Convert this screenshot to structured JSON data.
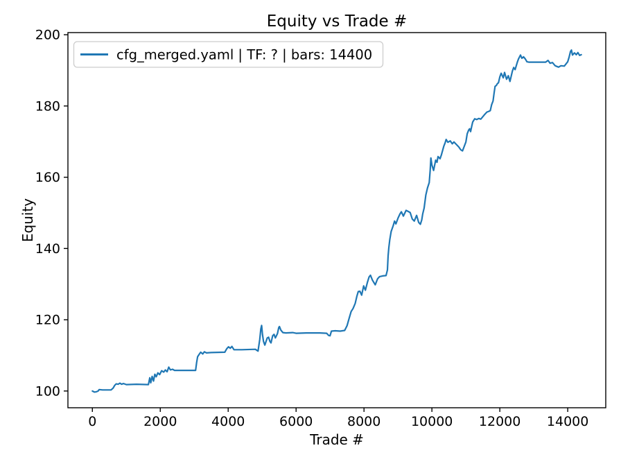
{
  "figure": {
    "background": "#ffffff"
  },
  "colors": {
    "line": "#1f77b4",
    "axis": "#000000",
    "legend_border": "#cccccc",
    "legend_background": "#ffffff",
    "text": "#000000"
  },
  "chart_data": {
    "type": "line",
    "title": "Equity vs Trade #",
    "xlabel": "Trade #",
    "ylabel": "Equity",
    "grid": false,
    "legend_position": "upper left",
    "xlim": [
      -720,
      15120
    ],
    "ylim": [
      95.3,
      200.6
    ],
    "xticks": [
      0,
      2000,
      4000,
      6000,
      8000,
      10000,
      12000,
      14000
    ],
    "yticks": [
      100,
      120,
      140,
      160,
      180,
      200
    ],
    "legend": {
      "entries": [
        {
          "label": "cfg_merged.yaml | TF: ? | bars: 14400",
          "color": "#1f77b4"
        }
      ]
    },
    "series": [
      {
        "name": "cfg_merged.yaml | TF: ? | bars: 14400",
        "color": "#1f77b4",
        "x": [
          0,
          60,
          120,
          170,
          200,
          300,
          550,
          610,
          660,
          700,
          760,
          810,
          860,
          920,
          1000,
          1300,
          1650,
          1690,
          1720,
          1760,
          1800,
          1840,
          1880,
          1930,
          1980,
          2040,
          2100,
          2150,
          2200,
          2250,
          2300,
          2360,
          2420,
          2700,
          3040,
          3070,
          3100,
          3140,
          3190,
          3250,
          3300,
          3360,
          3500,
          3900,
          3960,
          4010,
          4060,
          4110,
          4170,
          4400,
          4800,
          4880,
          4930,
          4960,
          4985,
          5010,
          5040,
          5080,
          5150,
          5190,
          5230,
          5260,
          5310,
          5350,
          5390,
          5450,
          5490,
          5510,
          5550,
          5610,
          5700,
          5900,
          6000,
          6300,
          6700,
          6900,
          6960,
          7000,
          7040,
          7150,
          7300,
          7430,
          7500,
          7560,
          7620,
          7680,
          7740,
          7790,
          7830,
          7880,
          7930,
          7990,
          8040,
          8100,
          8150,
          8190,
          8250,
          8330,
          8400,
          8460,
          8550,
          8650,
          8690,
          8710,
          8730,
          8760,
          8800,
          8860,
          8900,
          8940,
          9000,
          9060,
          9100,
          9160,
          9240,
          9300,
          9360,
          9420,
          9480,
          9550,
          9610,
          9660,
          9700,
          9730,
          9770,
          9820,
          9870,
          9920,
          9950,
          9970,
          10000,
          10050,
          10110,
          10150,
          10180,
          10240,
          10280,
          10350,
          10390,
          10420,
          10470,
          10540,
          10600,
          10650,
          10720,
          10790,
          10850,
          10900,
          10950,
          11000,
          11040,
          11080,
          11110,
          11140,
          11170,
          11200,
          11260,
          11320,
          11380,
          11440,
          11510,
          11560,
          11620,
          11680,
          11720,
          11760,
          11800,
          11830,
          11860,
          11900,
          11930,
          11960,
          12000,
          12040,
          12100,
          12140,
          12200,
          12250,
          12300,
          12370,
          12410,
          12450,
          12520,
          12550,
          12610,
          12650,
          12700,
          12750,
          12800,
          12850,
          13100,
          13350,
          13420,
          13480,
          13550,
          13630,
          13730,
          13800,
          13900,
          14000,
          14040,
          14080,
          14110,
          14140,
          14200,
          14250,
          14300,
          14350,
          14400
        ],
        "y": [
          100,
          99.7,
          99.8,
          100,
          100.4,
          100.3,
          100.3,
          100.8,
          101.6,
          102,
          101.9,
          102.2,
          101.9,
          102.1,
          101.8,
          101.9,
          101.8,
          103.7,
          102.3,
          104.1,
          102.8,
          104.7,
          104,
          105.1,
          104.6,
          105.7,
          105.3,
          105.9,
          105.4,
          106.7,
          105.9,
          106.1,
          105.8,
          105.8,
          105.8,
          108,
          109.6,
          110.2,
          110.9,
          110.4,
          111,
          110.7,
          110.8,
          110.9,
          111.9,
          112.4,
          112,
          112.5,
          111.6,
          111.6,
          111.7,
          111.2,
          114.5,
          117.4,
          118.4,
          115.9,
          113.9,
          112.9,
          114.9,
          115.1,
          113.9,
          113.5,
          115.5,
          115.9,
          114.9,
          116.1,
          117.8,
          118.1,
          117.1,
          116.4,
          116.3,
          116.4,
          116.2,
          116.3,
          116.3,
          116.2,
          115.6,
          115.5,
          116.8,
          116.9,
          116.8,
          117,
          118.3,
          120.3,
          122.3,
          123.2,
          124.6,
          126.6,
          127.9,
          128,
          126.9,
          129.5,
          128.3,
          130.5,
          132,
          132.5,
          131.1,
          129.8,
          131.5,
          132.1,
          132.3,
          132.4,
          134,
          138,
          140.2,
          142.5,
          144.8,
          146.4,
          147.7,
          146.9,
          148.5,
          149.7,
          150.3,
          149.1,
          150.7,
          150.4,
          150.1,
          148.3,
          147.7,
          149.3,
          147.3,
          146.8,
          148,
          149.7,
          151.3,
          155,
          157,
          158.5,
          162,
          165.4,
          163.4,
          161.9,
          164.8,
          164.2,
          165.8,
          165.2,
          166.3,
          168.7,
          169.7,
          170.6,
          169.8,
          170.2,
          169.4,
          169.9,
          169.2,
          168.5,
          167.7,
          167.4,
          168.6,
          169.9,
          172.2,
          173.2,
          173.6,
          172.8,
          174.2,
          175.5,
          176.4,
          176.2,
          176.5,
          176.3,
          177.1,
          177.7,
          178.3,
          178.5,
          178.7,
          180.4,
          181.4,
          183.5,
          185.5,
          185.8,
          186.3,
          186.5,
          188.2,
          189.2,
          187.9,
          189.4,
          187.5,
          188.5,
          186.9,
          189.8,
          190.8,
          190.2,
          192.4,
          193.2,
          194.3,
          193.4,
          193.8,
          193.2,
          192.4,
          192.3,
          192.3,
          192.3,
          192.8,
          192,
          192.2,
          191.3,
          190.9,
          191.3,
          191.2,
          192.4,
          193.7,
          195.3,
          195.7,
          194.3,
          194.9,
          194.4,
          195,
          194.2,
          194.4
        ]
      }
    ]
  }
}
